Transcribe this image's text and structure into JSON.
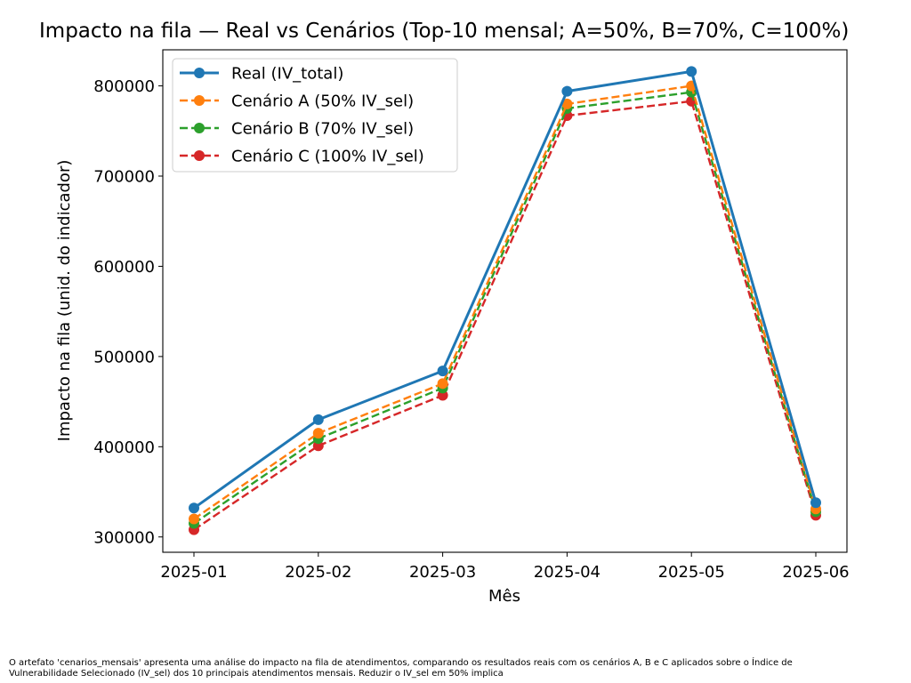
{
  "chart_data": {
    "type": "line",
    "title": "Impacto na fila — Real vs Cenários (Top-10 mensal; A=50%, B=70%, C=100%)",
    "xlabel": "Mês",
    "ylabel": "Impacto na fila (unid. do indicador)",
    "categories": [
      "2025-01",
      "2025-02",
      "2025-03",
      "2025-04",
      "2025-05",
      "2025-06"
    ],
    "yticks": [
      300000,
      400000,
      500000,
      600000,
      700000,
      800000
    ],
    "ylim": [
      283000,
      840000
    ],
    "grid": false,
    "legend_position": "top-left",
    "series": [
      {
        "name": "Real (IV_total)",
        "color": "#1f77b4",
        "style": "solid",
        "values": [
          332000,
          430000,
          484000,
          794000,
          816000,
          338000
        ]
      },
      {
        "name": "Cenário A (50% IV_sel)",
        "color": "#ff7f0e",
        "style": "dashed",
        "values": [
          320000,
          415000,
          470000,
          780000,
          800000,
          331000
        ]
      },
      {
        "name": "Cenário B (70% IV_sel)",
        "color": "#2ca02c",
        "style": "dashed",
        "values": [
          315000,
          409000,
          465000,
          775000,
          793000,
          328000
        ]
      },
      {
        "name": "Cenário C (100% IV_sel)",
        "color": "#d62728",
        "style": "dashed",
        "values": [
          308000,
          401000,
          457000,
          767000,
          783000,
          324000
        ]
      }
    ]
  },
  "caption": {
    "line1": "O artefato 'cenarios_mensais' apresenta uma análise do impacto na fila de atendimentos, comparando os resultados reais com os cenários A, B e C aplicados sobre o Índice de",
    "line2": "Vulnerabilidade Selecionado (IV_sel) dos 10 principais atendimentos mensais. Reduzir o IV_sel em 50% implica"
  }
}
